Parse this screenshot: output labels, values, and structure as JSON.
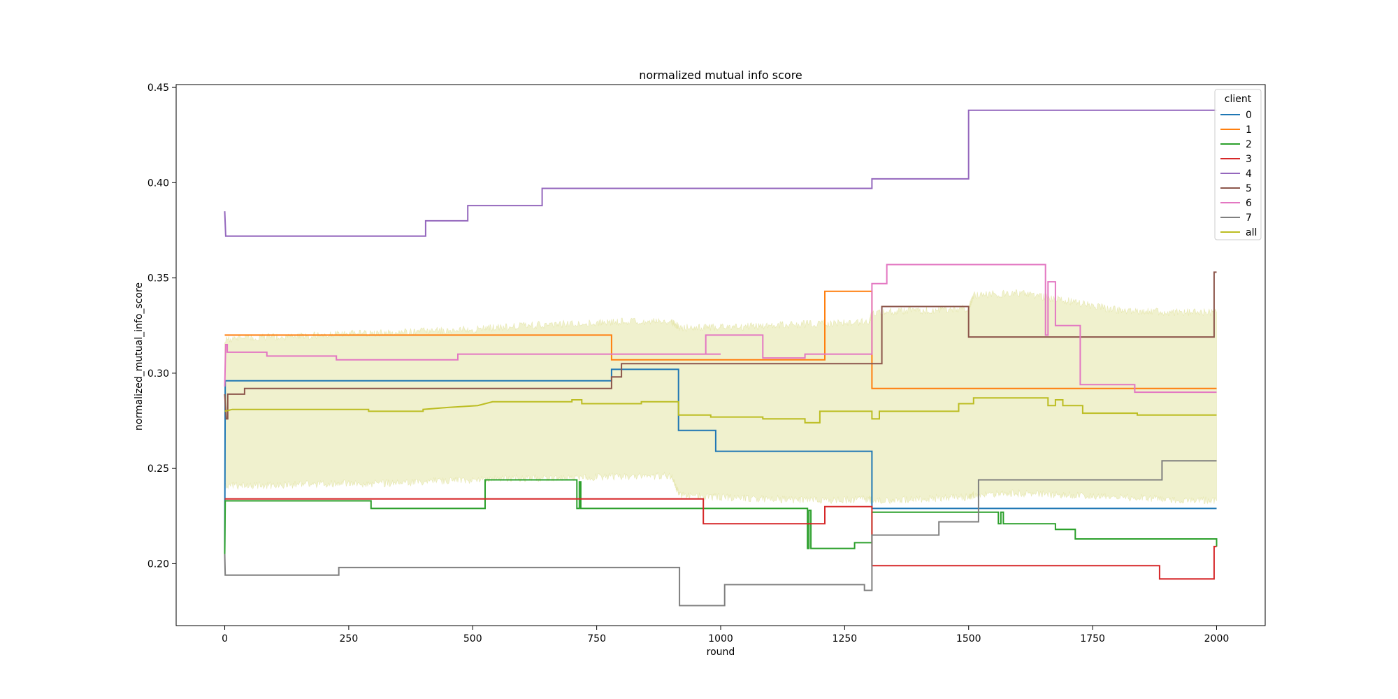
{
  "chart_data": {
    "type": "line",
    "title": "normalized mutual info score",
    "xlabel": "round",
    "ylabel": "normalized_mutual_info_score",
    "xlim": [
      -98,
      2098
    ],
    "ylim": [
      0.1675,
      0.4515
    ],
    "xticks": [
      0,
      250,
      500,
      750,
      1000,
      1250,
      1500,
      1750,
      2000
    ],
    "xtick_labels": [
      "0",
      "250",
      "500",
      "750",
      "1000",
      "1250",
      "1500",
      "1750",
      "2000"
    ],
    "yticks": [
      0.2,
      0.25,
      0.3,
      0.35,
      0.4,
      0.45
    ],
    "ytick_labels": [
      "0.20",
      "0.25",
      "0.30",
      "0.35",
      "0.40",
      "0.45"
    ],
    "grid": false,
    "legend": {
      "title": "client",
      "placement": "top-right"
    },
    "series": [
      {
        "name": "0",
        "color": "#1f77b4",
        "step": true,
        "points": [
          [
            0,
            0.205
          ],
          [
            1,
            0.296
          ],
          [
            780,
            0.296
          ],
          [
            780,
            0.302
          ],
          [
            915,
            0.302
          ],
          [
            915,
            0.27
          ],
          [
            990,
            0.27
          ],
          [
            990,
            0.259
          ],
          [
            1305,
            0.259
          ],
          [
            1305,
            0.229
          ],
          [
            2000,
            0.229
          ]
        ]
      },
      {
        "name": "1",
        "color": "#ff7f0e",
        "step": true,
        "points": [
          [
            0,
            0.32
          ],
          [
            780,
            0.32
          ],
          [
            780,
            0.307
          ],
          [
            1210,
            0.307
          ],
          [
            1210,
            0.343
          ],
          [
            1305,
            0.343
          ],
          [
            1305,
            0.292
          ],
          [
            2000,
            0.292
          ]
        ]
      },
      {
        "name": "2",
        "color": "#2ca02c",
        "step": true,
        "points": [
          [
            0,
            0.205
          ],
          [
            1,
            0.233
          ],
          [
            295,
            0.233
          ],
          [
            295,
            0.229
          ],
          [
            525,
            0.229
          ],
          [
            525,
            0.244
          ],
          [
            710,
            0.244
          ],
          [
            710,
            0.229
          ],
          [
            715,
            0.229
          ],
          [
            715,
            0.243
          ],
          [
            718,
            0.243
          ],
          [
            718,
            0.229
          ],
          [
            1175,
            0.229
          ],
          [
            1175,
            0.208
          ],
          [
            1178,
            0.208
          ],
          [
            1178,
            0.228
          ],
          [
            1182,
            0.228
          ],
          [
            1182,
            0.208
          ],
          [
            1270,
            0.208
          ],
          [
            1270,
            0.211
          ],
          [
            1305,
            0.211
          ],
          [
            1305,
            0.227
          ],
          [
            1560,
            0.227
          ],
          [
            1560,
            0.221
          ],
          [
            1565,
            0.221
          ],
          [
            1565,
            0.227
          ],
          [
            1570,
            0.227
          ],
          [
            1570,
            0.221
          ],
          [
            1675,
            0.221
          ],
          [
            1675,
            0.218
          ],
          [
            1715,
            0.218
          ],
          [
            1715,
            0.213
          ],
          [
            2000,
            0.213
          ],
          [
            2000,
            0.209
          ]
        ]
      },
      {
        "name": "3",
        "color": "#d62728",
        "step": true,
        "points": [
          [
            0,
            0.234
          ],
          [
            965,
            0.234
          ],
          [
            965,
            0.221
          ],
          [
            1160,
            0.221
          ],
          [
            1160,
            0.221
          ],
          [
            1210,
            0.221
          ],
          [
            1210,
            0.23
          ],
          [
            1305,
            0.23
          ],
          [
            1305,
            0.199
          ],
          [
            1885,
            0.199
          ],
          [
            1885,
            0.192
          ],
          [
            1995,
            0.192
          ],
          [
            1995,
            0.209
          ],
          [
            2000,
            0.209
          ]
        ]
      },
      {
        "name": "4",
        "color": "#9467bd",
        "step": true,
        "points": [
          [
            0,
            0.385
          ],
          [
            2,
            0.372
          ],
          [
            405,
            0.372
          ],
          [
            405,
            0.38
          ],
          [
            490,
            0.38
          ],
          [
            490,
            0.388
          ],
          [
            640,
            0.388
          ],
          [
            640,
            0.397
          ],
          [
            1305,
            0.397
          ],
          [
            1305,
            0.402
          ],
          [
            1500,
            0.402
          ],
          [
            1500,
            0.438
          ],
          [
            2000,
            0.438
          ]
        ]
      },
      {
        "name": "5",
        "color": "#8c564b",
        "step": true,
        "points": [
          [
            0,
            0.289
          ],
          [
            3,
            0.276
          ],
          [
            6,
            0.276
          ],
          [
            6,
            0.289
          ],
          [
            40,
            0.289
          ],
          [
            40,
            0.292
          ],
          [
            780,
            0.292
          ],
          [
            780,
            0.298
          ],
          [
            800,
            0.298
          ],
          [
            800,
            0.305
          ],
          [
            1325,
            0.305
          ],
          [
            1325,
            0.335
          ],
          [
            1500,
            0.335
          ],
          [
            1500,
            0.319
          ],
          [
            1995,
            0.319
          ],
          [
            1995,
            0.353
          ],
          [
            2000,
            0.353
          ]
        ]
      },
      {
        "name": "6",
        "color": "#e377c2",
        "step": true,
        "points": [
          [
            0,
            0.293
          ],
          [
            2,
            0.315
          ],
          [
            5,
            0.315
          ],
          [
            5,
            0.311
          ],
          [
            85,
            0.311
          ],
          [
            85,
            0.309
          ],
          [
            225,
            0.309
          ],
          [
            225,
            0.307
          ],
          [
            470,
            0.307
          ],
          [
            470,
            0.31
          ],
          [
            1000,
            0.31
          ],
          [
            970,
            0.31
          ],
          [
            970,
            0.32
          ],
          [
            1085,
            0.32
          ],
          [
            1085,
            0.308
          ],
          [
            1170,
            0.308
          ],
          [
            1170,
            0.31
          ],
          [
            1305,
            0.31
          ],
          [
            1305,
            0.347
          ],
          [
            1335,
            0.347
          ],
          [
            1335,
            0.357
          ],
          [
            1655,
            0.357
          ],
          [
            1655,
            0.32
          ],
          [
            1660,
            0.32
          ],
          [
            1660,
            0.348
          ],
          [
            1675,
            0.348
          ],
          [
            1675,
            0.325
          ],
          [
            1725,
            0.325
          ],
          [
            1725,
            0.294
          ],
          [
            1835,
            0.294
          ],
          [
            1835,
            0.29
          ],
          [
            2000,
            0.29
          ]
        ]
      },
      {
        "name": "7",
        "color": "#7f7f7f",
        "step": true,
        "points": [
          [
            0,
            0.205
          ],
          [
            1,
            0.194
          ],
          [
            230,
            0.194
          ],
          [
            230,
            0.198
          ],
          [
            917,
            0.198
          ],
          [
            917,
            0.178
          ],
          [
            1008,
            0.178
          ],
          [
            1008,
            0.189
          ],
          [
            1290,
            0.189
          ],
          [
            1290,
            0.186
          ],
          [
            1305,
            0.186
          ],
          [
            1305,
            0.215
          ],
          [
            1440,
            0.215
          ],
          [
            1440,
            0.222
          ],
          [
            1520,
            0.222
          ],
          [
            1520,
            0.244
          ],
          [
            1890,
            0.244
          ],
          [
            1890,
            0.254
          ],
          [
            2000,
            0.254
          ]
        ]
      },
      {
        "name": "all",
        "color": "#bcbd22",
        "step": true,
        "points": [
          [
            0,
            0.28
          ],
          [
            15,
            0.281
          ],
          [
            200,
            0.281
          ],
          [
            290,
            0.281
          ],
          [
            290,
            0.28
          ],
          [
            400,
            0.28
          ],
          [
            400,
            0.281
          ],
          [
            450,
            0.282
          ],
          [
            510,
            0.283
          ],
          [
            540,
            0.285
          ],
          [
            700,
            0.285
          ],
          [
            700,
            0.286
          ],
          [
            720,
            0.286
          ],
          [
            720,
            0.284
          ],
          [
            840,
            0.284
          ],
          [
            840,
            0.285
          ],
          [
            915,
            0.285
          ],
          [
            915,
            0.278
          ],
          [
            980,
            0.278
          ],
          [
            980,
            0.277
          ],
          [
            1085,
            0.277
          ],
          [
            1085,
            0.276
          ],
          [
            1170,
            0.276
          ],
          [
            1170,
            0.274
          ],
          [
            1200,
            0.274
          ],
          [
            1200,
            0.28
          ],
          [
            1305,
            0.28
          ],
          [
            1305,
            0.276
          ],
          [
            1320,
            0.276
          ],
          [
            1320,
            0.28
          ],
          [
            1480,
            0.28
          ],
          [
            1480,
            0.284
          ],
          [
            1510,
            0.284
          ],
          [
            1510,
            0.287
          ],
          [
            1660,
            0.287
          ],
          [
            1660,
            0.283
          ],
          [
            1675,
            0.283
          ],
          [
            1675,
            0.286
          ],
          [
            1690,
            0.286
          ],
          [
            1690,
            0.283
          ],
          [
            1730,
            0.283
          ],
          [
            1730,
            0.279
          ],
          [
            1840,
            0.279
          ],
          [
            1840,
            0.278
          ],
          [
            2000,
            0.278
          ]
        ],
        "band": {
          "x": [
            0,
            100,
            200,
            300,
            400,
            500,
            600,
            700,
            800,
            900,
            917,
            1000,
            1100,
            1200,
            1300,
            1305,
            1400,
            1500,
            1510,
            1600,
            1700,
            1800,
            1900,
            2000
          ],
          "lower": [
            0.241,
            0.241,
            0.242,
            0.242,
            0.243,
            0.244,
            0.245,
            0.245,
            0.246,
            0.246,
            0.236,
            0.235,
            0.234,
            0.233,
            0.234,
            0.233,
            0.234,
            0.235,
            0.236,
            0.237,
            0.236,
            0.235,
            0.234,
            0.233
          ],
          "upper": [
            0.318,
            0.319,
            0.32,
            0.321,
            0.322,
            0.323,
            0.325,
            0.326,
            0.327,
            0.327,
            0.324,
            0.324,
            0.325,
            0.326,
            0.327,
            0.332,
            0.333,
            0.334,
            0.341,
            0.342,
            0.338,
            0.333,
            0.332,
            0.332
          ]
        }
      }
    ]
  }
}
